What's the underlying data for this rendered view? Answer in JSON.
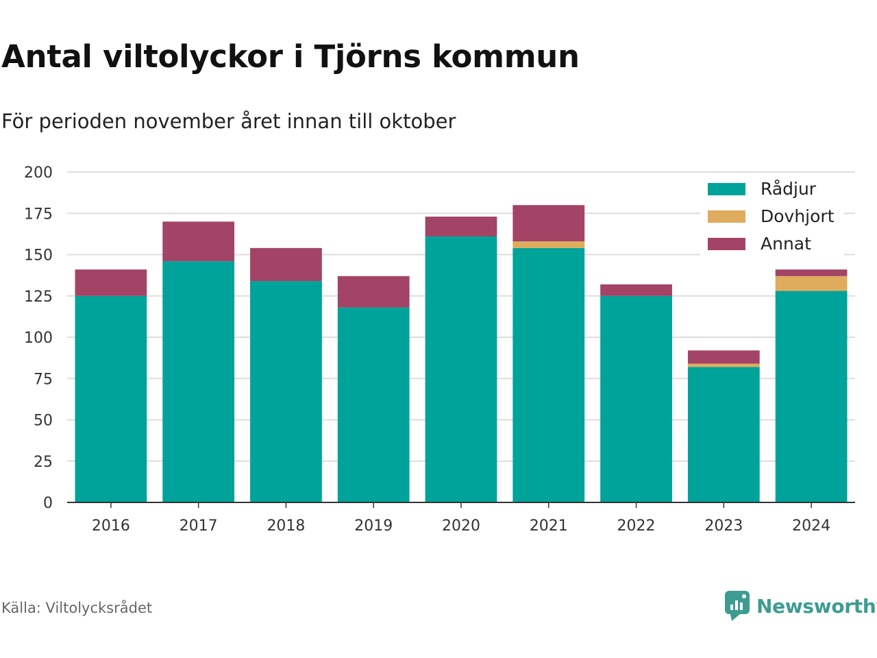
{
  "title": "Antal viltolyckor i Tjörns kommun",
  "subtitle": "För perioden november året innan till oktober",
  "source": "Källa: Viltolycksrådet",
  "brand": "Newsworthy",
  "colors": {
    "Rådjur": "#00a39a",
    "Dovhjort": "#deac5c",
    "Annat": "#a34467",
    "grid": "#dddddd",
    "axis": "#333333",
    "brand": "#3d9c91"
  },
  "chart_data": {
    "type": "bar",
    "stacked": true,
    "categories": [
      "2016",
      "2017",
      "2018",
      "2019",
      "2020",
      "2021",
      "2022",
      "2023",
      "2024"
    ],
    "series": [
      {
        "name": "Rådjur",
        "values": [
          125,
          146,
          134,
          118,
          161,
          154,
          125,
          82,
          128
        ]
      },
      {
        "name": "Dovhjort",
        "values": [
          0,
          0,
          0,
          0,
          0,
          4,
          0,
          2,
          9
        ]
      },
      {
        "name": "Annat",
        "values": [
          16,
          24,
          20,
          19,
          12,
          22,
          7,
          8,
          4
        ]
      }
    ],
    "ylim": [
      0,
      200
    ],
    "yticks": [
      0,
      25,
      50,
      75,
      100,
      125,
      150,
      175,
      200
    ],
    "xlabel": "",
    "ylabel": "",
    "grid": true,
    "legend": "top-right"
  }
}
